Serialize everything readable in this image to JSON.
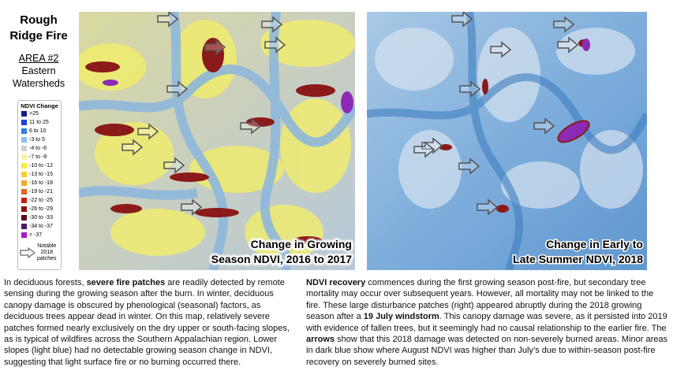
{
  "header": {
    "title_lines": [
      "Rough",
      "Ridge Fire"
    ],
    "area": "AREA #2",
    "area_desc": [
      "Eastern",
      "Watersheds"
    ]
  },
  "legend": {
    "title": "NDVI Change",
    "items": [
      {
        "label": ">25",
        "color": "#1a1a8c"
      },
      {
        "label": "11 to 25",
        "color": "#1f3fd6"
      },
      {
        "label": "6 to 10",
        "color": "#2f7fe0"
      },
      {
        "label": "-3 to 5",
        "color": "#8fc0ea"
      },
      {
        "label": "-4 to -6",
        "color": "#cfcfcf"
      },
      {
        "label": "-7 to -9",
        "color": "#f7f3a6"
      },
      {
        "label": "-10 to -12",
        "color": "#f5ec3c"
      },
      {
        "label": "-13 to -15",
        "color": "#f2d12a"
      },
      {
        "label": "-16 to -18",
        "color": "#eeab24"
      },
      {
        "label": "-19 to -21",
        "color": "#e8641c"
      },
      {
        "label": "-22 to -25",
        "color": "#c41e14"
      },
      {
        "label": "-26 to -29",
        "color": "#8c1212"
      },
      {
        "label": "-30 to -33",
        "color": "#5e0e16"
      },
      {
        "label": "-34 to -37",
        "color": "#4a1a6a"
      },
      {
        "label": "< -37",
        "color": "#a21cc8"
      }
    ],
    "note_lines": [
      "Notable",
      "2018",
      "patches"
    ]
  },
  "maps": [
    {
      "caption_lines": [
        "Change in Growing",
        "Season NDVI, 2016 to 2017"
      ]
    },
    {
      "caption_lines": [
        "Change in Early to",
        "Late Summer NDVI, 2018"
      ]
    }
  ],
  "paragraphs": [
    [
      {
        "text": "In deciduous forests, "
      },
      {
        "text": "severe fire patches",
        "bold": true
      },
      {
        "text": " are readily detected by remote sensing during the growing season after the burn. In winter, deciduous canopy damage is obscured by phenological (seasonal) factors, as deciduous trees appear dead in winter. On this map, relatively severe patches formed nearly exclusively on the dry upper or south-facing slopes, as is typical of wildfires across the Southern Appalachian region. Lower slopes (light blue) had no detectable growing season change in NDVI, suggesting that light surface fire or no burning occurred there."
      }
    ],
    [
      {
        "text": "NDVI recovery",
        "bold": true
      },
      {
        "text": " commences during the first growing season post-fire, but secondary tree mortality may occur over subsequent years. However, all mortality may not be linked to the fire. These large disturbance patches (right) appeared abruptly during the 2018 growing season after a "
      },
      {
        "text": "19 July windstorm",
        "bold": true
      },
      {
        "text": ". This canopy damage was severe, as it persisted into 2019 with evidence of fallen trees, but it seemingly had no causal relationship to the earlier fire. The "
      },
      {
        "text": "arrows",
        "bold": true
      },
      {
        "text": " show that this 2018 damage was detected on non-severely burned areas. Minor areas in dark blue show where August NDVI was higher than July’s due to within-season post-fire recovery on severely burned sites."
      }
    ]
  ]
}
